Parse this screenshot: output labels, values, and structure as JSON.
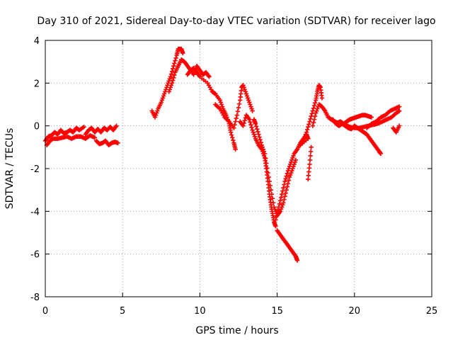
{
  "chart_data": {
    "type": "scatter",
    "title": "Day 310 of 2021, Sidereal Day-to-day VTEC variation (SDTVAR) for receiver lago",
    "xlabel": "GPS time / hours",
    "ylabel": "SDTVAR / TECUs",
    "xlim": [
      0,
      25
    ],
    "ylim": [
      -8,
      4
    ],
    "xticks": [
      0,
      5,
      10,
      15,
      20,
      25
    ],
    "yticks": [
      -8,
      -6,
      -4,
      -2,
      0,
      2,
      4
    ],
    "grid": true,
    "marker": "+",
    "color": "#ff0000",
    "series": [
      {
        "name": "SDTVAR",
        "points": [
          [
            0.0,
            -0.7
          ],
          [
            0.2,
            -0.5
          ],
          [
            0.4,
            -0.45
          ],
          [
            0.6,
            -0.3
          ],
          [
            0.8,
            -0.4
          ],
          [
            1.0,
            -0.2
          ],
          [
            1.2,
            -0.35
          ],
          [
            1.4,
            -0.3
          ],
          [
            1.6,
            -0.2
          ],
          [
            1.8,
            -0.3
          ],
          [
            2.0,
            -0.1
          ],
          [
            2.2,
            -0.2
          ],
          [
            2.5,
            -0.05
          ],
          [
            0.1,
            -0.9
          ],
          [
            0.3,
            -0.7
          ],
          [
            0.5,
            -0.6
          ],
          [
            0.8,
            -0.6
          ],
          [
            1.1,
            -0.55
          ],
          [
            1.4,
            -0.5
          ],
          [
            1.7,
            -0.6
          ],
          [
            2.0,
            -0.5
          ],
          [
            2.3,
            -0.5
          ],
          [
            2.6,
            -0.6
          ],
          [
            2.9,
            -0.45
          ],
          [
            3.2,
            -0.55
          ],
          [
            2.6,
            -0.4
          ],
          [
            2.8,
            -0.2
          ],
          [
            3.0,
            -0.1
          ],
          [
            3.2,
            -0.3
          ],
          [
            3.4,
            -0.15
          ],
          [
            3.6,
            -0.3
          ],
          [
            3.8,
            -0.1
          ],
          [
            4.0,
            -0.2
          ],
          [
            4.2,
            -0.05
          ],
          [
            4.4,
            -0.2
          ],
          [
            4.6,
            0.0
          ],
          [
            3.3,
            -0.7
          ],
          [
            3.5,
            -0.85
          ],
          [
            3.7,
            -0.8
          ],
          [
            3.9,
            -0.7
          ],
          [
            4.1,
            -0.9
          ],
          [
            4.3,
            -0.8
          ],
          [
            4.5,
            -0.75
          ],
          [
            4.7,
            -0.8
          ],
          [
            6.9,
            0.7
          ],
          [
            7.1,
            0.4
          ],
          [
            7.3,
            0.8
          ],
          [
            7.5,
            1.1
          ],
          [
            7.7,
            1.5
          ],
          [
            7.9,
            1.9
          ],
          [
            8.1,
            2.3
          ],
          [
            8.3,
            2.8
          ],
          [
            8.5,
            3.3
          ],
          [
            8.6,
            3.6
          ],
          [
            8.8,
            3.6
          ],
          [
            8.9,
            3.4
          ],
          [
            8.0,
            1.6
          ],
          [
            8.2,
            2.0
          ],
          [
            8.4,
            2.5
          ],
          [
            8.6,
            2.8
          ],
          [
            8.8,
            3.1
          ],
          [
            9.0,
            3.0
          ],
          [
            9.2,
            2.8
          ],
          [
            9.4,
            2.6
          ],
          [
            9.6,
            2.4
          ],
          [
            9.8,
            2.8
          ],
          [
            10.0,
            2.6
          ],
          [
            10.2,
            2.4
          ],
          [
            10.4,
            2.5
          ],
          [
            10.6,
            2.3
          ],
          [
            9.2,
            2.4
          ],
          [
            9.4,
            2.6
          ],
          [
            9.6,
            2.7
          ],
          [
            9.8,
            2.5
          ],
          [
            10.0,
            2.3
          ],
          [
            10.5,
            2.0
          ],
          [
            10.8,
            1.6
          ],
          [
            11.0,
            1.5
          ],
          [
            11.3,
            1.2
          ],
          [
            11.5,
            0.8
          ],
          [
            11.7,
            0.5
          ],
          [
            11.9,
            0.1
          ],
          [
            12.0,
            -0.3
          ],
          [
            12.2,
            -0.8
          ],
          [
            12.3,
            -1.1
          ],
          [
            11.0,
            1.0
          ],
          [
            11.3,
            0.8
          ],
          [
            11.6,
            0.4
          ],
          [
            11.9,
            0.2
          ],
          [
            12.2,
            -0.1
          ],
          [
            12.4,
            0.5
          ],
          [
            12.6,
            1.2
          ],
          [
            12.7,
            1.8
          ],
          [
            12.8,
            1.9
          ],
          [
            13.0,
            1.5
          ],
          [
            13.2,
            1.1
          ],
          [
            13.4,
            0.7
          ],
          [
            12.6,
            0.2
          ],
          [
            12.8,
            0.0
          ],
          [
            13.0,
            0.5
          ],
          [
            13.2,
            0.3
          ],
          [
            13.4,
            -0.2
          ],
          [
            13.6,
            -0.6
          ],
          [
            13.8,
            -0.9
          ],
          [
            14.0,
            -1.1
          ],
          [
            14.2,
            -1.5
          ],
          [
            14.3,
            -2.0
          ],
          [
            14.4,
            -2.6
          ],
          [
            14.5,
            -3.2
          ],
          [
            14.6,
            -3.7
          ],
          [
            14.7,
            -4.1
          ],
          [
            14.8,
            -4.5
          ],
          [
            14.9,
            -4.7
          ],
          [
            13.5,
            0.3
          ],
          [
            13.6,
            0.1
          ],
          [
            13.8,
            -0.4
          ],
          [
            14.0,
            -0.9
          ],
          [
            14.2,
            -1.3
          ],
          [
            14.4,
            -2.2
          ],
          [
            14.6,
            -3.0
          ],
          [
            14.8,
            -3.8
          ],
          [
            15.0,
            -4.2
          ],
          [
            15.2,
            -4.0
          ],
          [
            15.4,
            -3.6
          ],
          [
            15.6,
            -3.0
          ],
          [
            15.8,
            -2.4
          ],
          [
            16.0,
            -2.0
          ],
          [
            16.2,
            -1.6
          ],
          [
            15.0,
            -4.9
          ],
          [
            15.2,
            -5.1
          ],
          [
            15.4,
            -5.3
          ],
          [
            15.6,
            -5.5
          ],
          [
            15.8,
            -5.7
          ],
          [
            16.0,
            -5.9
          ],
          [
            16.2,
            -6.1
          ],
          [
            16.3,
            -6.3
          ],
          [
            14.9,
            -4.4
          ],
          [
            15.1,
            -3.8
          ],
          [
            15.3,
            -3.2
          ],
          [
            15.5,
            -2.6
          ],
          [
            15.7,
            -2.1
          ],
          [
            15.9,
            -1.7
          ],
          [
            16.1,
            -1.3
          ],
          [
            16.3,
            -1.1
          ],
          [
            16.5,
            -0.8
          ],
          [
            16.7,
            -0.6
          ],
          [
            16.9,
            -0.4
          ],
          [
            17.0,
            -0.6
          ],
          [
            16.5,
            -0.9
          ],
          [
            16.7,
            -0.7
          ],
          [
            16.9,
            -0.3
          ],
          [
            17.1,
            0.2
          ],
          [
            17.3,
            0.7
          ],
          [
            17.5,
            1.2
          ],
          [
            17.6,
            1.6
          ],
          [
            17.7,
            1.9
          ],
          [
            17.8,
            1.8
          ],
          [
            17.9,
            1.3
          ],
          [
            17.0,
            -2.5
          ],
          [
            17.1,
            -1.8
          ],
          [
            17.2,
            -1.0
          ],
          [
            17.3,
            0.0
          ],
          [
            17.5,
            0.6
          ],
          [
            17.7,
            1.0
          ],
          [
            17.9,
            0.9
          ],
          [
            18.1,
            0.7
          ],
          [
            18.3,
            0.4
          ],
          [
            18.5,
            0.3
          ],
          [
            18.7,
            0.2
          ],
          [
            18.9,
            0.15
          ],
          [
            19.1,
            0.2
          ],
          [
            19.3,
            0.1
          ],
          [
            19.5,
            0.2
          ],
          [
            19.7,
            0.3
          ],
          [
            19.9,
            0.35
          ],
          [
            20.1,
            0.4
          ],
          [
            20.3,
            0.45
          ],
          [
            20.5,
            0.5
          ],
          [
            20.7,
            0.5
          ],
          [
            20.9,
            0.45
          ],
          [
            21.1,
            0.4
          ],
          [
            18.6,
            0.3
          ],
          [
            18.8,
            0.1
          ],
          [
            19.0,
            0.0
          ],
          [
            19.2,
            0.1
          ],
          [
            19.4,
            0.0
          ],
          [
            19.6,
            -0.1
          ],
          [
            19.8,
            -0.15
          ],
          [
            20.0,
            0.0
          ],
          [
            20.2,
            -0.1
          ],
          [
            20.4,
            -0.2
          ],
          [
            20.6,
            -0.3
          ],
          [
            20.8,
            -0.4
          ],
          [
            21.0,
            -0.6
          ],
          [
            21.2,
            -0.8
          ],
          [
            21.4,
            -1.0
          ],
          [
            21.6,
            -1.2
          ],
          [
            21.7,
            -1.3
          ],
          [
            19.5,
            0.0
          ],
          [
            19.7,
            -0.05
          ],
          [
            20.0,
            -0.1
          ],
          [
            20.3,
            -0.1
          ],
          [
            20.6,
            -0.05
          ],
          [
            20.9,
            0.0
          ],
          [
            21.2,
            0.05
          ],
          [
            21.5,
            0.1
          ],
          [
            21.8,
            0.2
          ],
          [
            22.1,
            0.3
          ],
          [
            22.4,
            0.4
          ],
          [
            22.7,
            0.6
          ],
          [
            22.9,
            0.7
          ],
          [
            20.8,
            -0.1
          ],
          [
            21.1,
            0.1
          ],
          [
            21.4,
            0.2
          ],
          [
            21.7,
            0.4
          ],
          [
            22.0,
            0.5
          ],
          [
            22.3,
            0.7
          ],
          [
            22.6,
            0.8
          ],
          [
            22.9,
            0.9
          ],
          [
            22.5,
            -0.1
          ],
          [
            22.7,
            -0.3
          ],
          [
            22.9,
            0.0
          ]
        ]
      }
    ]
  }
}
